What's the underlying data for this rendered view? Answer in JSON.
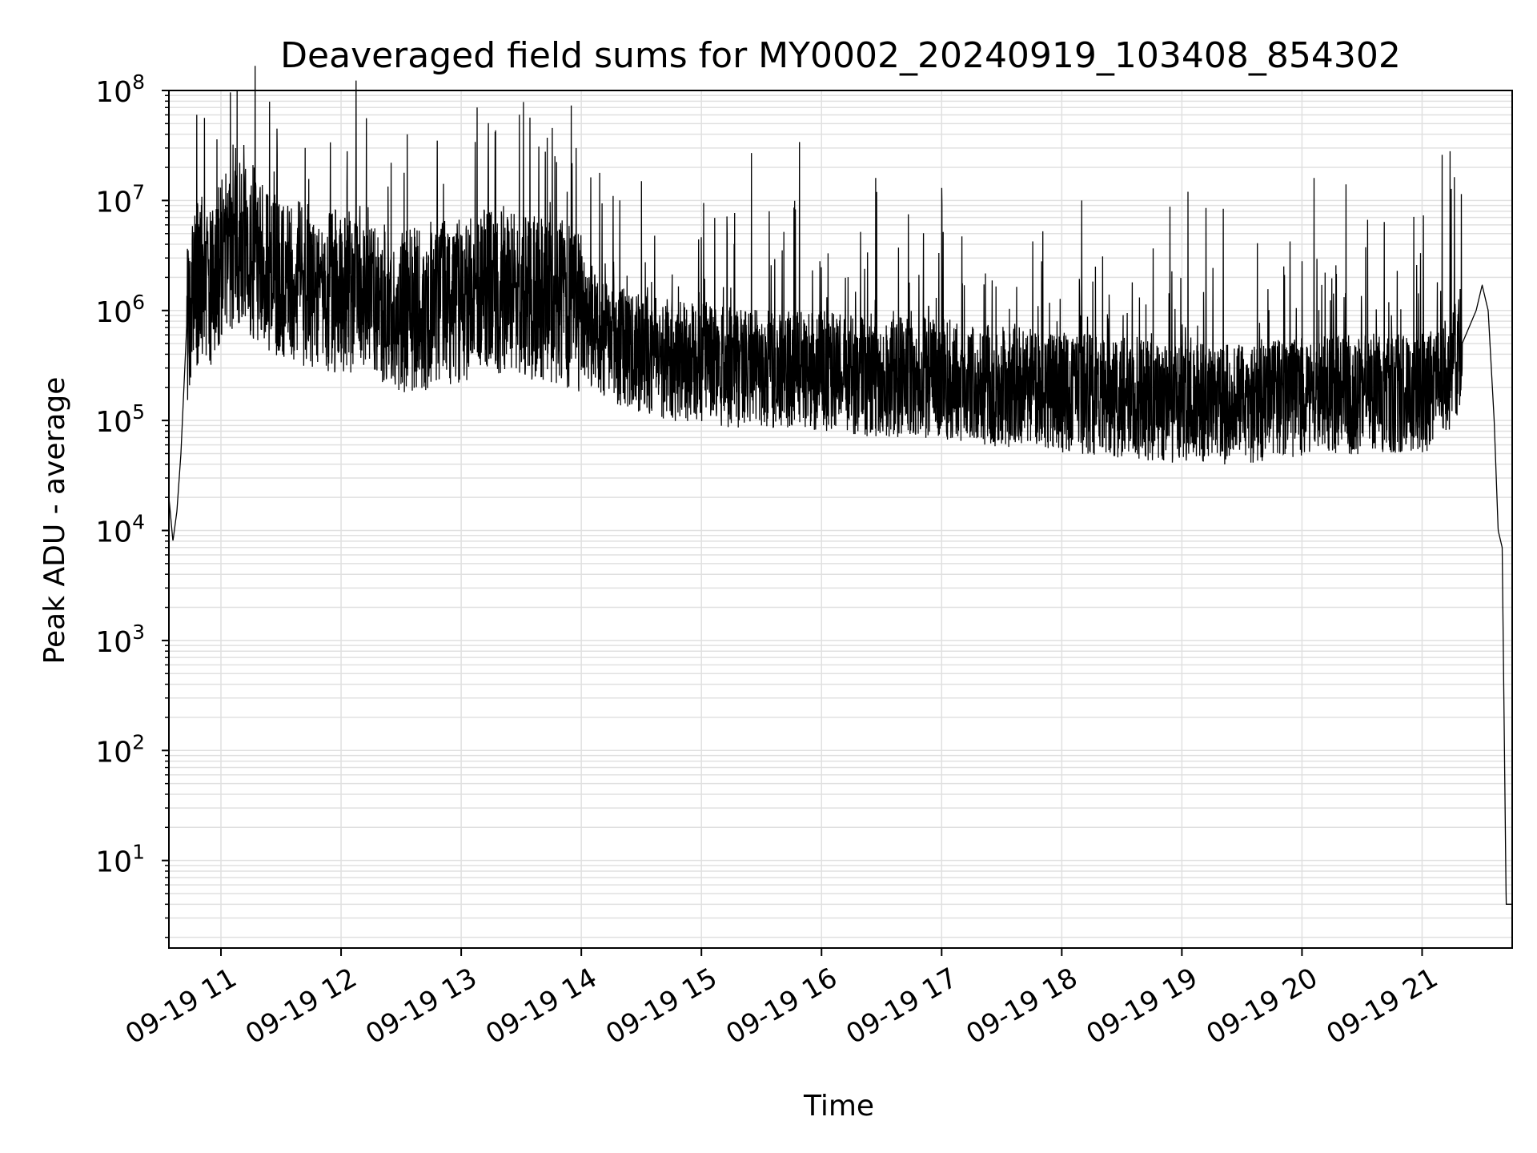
{
  "chart_data": {
    "type": "line",
    "title": "Deaveraged field sums for MY0002_20240919_103408_854302",
    "xlabel": "Time",
    "ylabel": "Peak ADU - average",
    "yscale": "log",
    "ylim": [
      1.6,
      100000000
    ],
    "xlim": [
      "2024-09-19 10:34",
      "2024-09-19 21:45"
    ],
    "grid": true,
    "line_color": "#000000",
    "grid_color": "#e0e0e0",
    "x_ticks": [
      {
        "value": "2024-09-19 11:00",
        "label": "09-19 11"
      },
      {
        "value": "2024-09-19 12:00",
        "label": "09-19 12"
      },
      {
        "value": "2024-09-19 13:00",
        "label": "09-19 13"
      },
      {
        "value": "2024-09-19 14:00",
        "label": "09-19 14"
      },
      {
        "value": "2024-09-19 15:00",
        "label": "09-19 15"
      },
      {
        "value": "2024-09-19 16:00",
        "label": "09-19 16"
      },
      {
        "value": "2024-09-19 17:00",
        "label": "09-19 17"
      },
      {
        "value": "2024-09-19 18:00",
        "label": "09-19 18"
      },
      {
        "value": "2024-09-19 19:00",
        "label": "09-19 19"
      },
      {
        "value": "2024-09-19 20:00",
        "label": "09-19 20"
      },
      {
        "value": "2024-09-19 21:00",
        "label": "09-19 21"
      }
    ],
    "y_ticks": [
      {
        "value": 10,
        "base": "10",
        "exp": "1"
      },
      {
        "value": 100,
        "base": "10",
        "exp": "2"
      },
      {
        "value": 1000,
        "base": "10",
        "exp": "3"
      },
      {
        "value": 10000,
        "base": "10",
        "exp": "4"
      },
      {
        "value": 100000,
        "base": "10",
        "exp": "5"
      },
      {
        "value": 1000000,
        "base": "10",
        "exp": "6"
      },
      {
        "value": 10000000,
        "base": "10",
        "exp": "7"
      },
      {
        "value": 100000000,
        "base": "10",
        "exp": "8"
      }
    ],
    "series": [
      {
        "x": [
          "2024-09-19 10:34",
          "2024-09-19 10:36",
          "2024-09-19 10:38",
          "2024-09-19 10:40",
          "2024-09-19 10:43",
          "2024-09-19 10:46",
          "2024-09-19 10:50",
          "2024-09-19 10:55",
          "2024-09-19 11:00",
          "2024-09-19 11:10",
          "2024-09-19 11:20",
          "2024-09-19 11:30",
          "2024-09-19 11:40",
          "2024-09-19 11:50",
          "2024-09-19 12:00",
          "2024-09-19 12:10",
          "2024-09-19 12:20",
          "2024-09-19 12:30",
          "2024-09-19 12:40",
          "2024-09-19 12:50",
          "2024-09-19 13:00",
          "2024-09-19 13:10",
          "2024-09-19 13:20",
          "2024-09-19 13:30",
          "2024-09-19 13:40",
          "2024-09-19 13:50",
          "2024-09-19 14:00",
          "2024-09-19 14:15",
          "2024-09-19 14:30",
          "2024-09-19 14:45",
          "2024-09-19 15:00",
          "2024-09-19 15:15",
          "2024-09-19 15:30",
          "2024-09-19 15:45",
          "2024-09-19 16:00",
          "2024-09-19 16:15",
          "2024-09-19 16:30",
          "2024-09-19 16:45",
          "2024-09-19 17:00",
          "2024-09-19 17:15",
          "2024-09-19 17:30",
          "2024-09-19 17:45",
          "2024-09-19 18:00",
          "2024-09-19 18:15",
          "2024-09-19 18:30",
          "2024-09-19 18:45",
          "2024-09-19 19:00",
          "2024-09-19 19:15",
          "2024-09-19 19:30",
          "2024-09-19 19:45",
          "2024-09-19 20:00",
          "2024-09-19 20:15",
          "2024-09-19 20:30",
          "2024-09-19 20:45",
          "2024-09-19 21:00",
          "2024-09-19 21:10",
          "2024-09-19 21:20",
          "2024-09-19 21:27",
          "2024-09-19 21:30",
          "2024-09-19 21:33",
          "2024-09-19 21:36",
          "2024-09-19 21:38",
          "2024-09-19 21:40",
          "2024-09-19 21:42",
          "2024-09-19 21:45"
        ],
        "y": [
          20000,
          8000,
          15000,
          50000,
          800000,
          1500000,
          2000000,
          1500000,
          3000000,
          4000000,
          2500000,
          2000000,
          1800000,
          1500000,
          1500000,
          1300000,
          1200000,
          1000000,
          1000000,
          1200000,
          1200000,
          1500000,
          1500000,
          1300000,
          1300000,
          1200000,
          900000,
          500000,
          400000,
          350000,
          350000,
          300000,
          300000,
          300000,
          280000,
          260000,
          250000,
          250000,
          240000,
          220000,
          200000,
          200000,
          180000,
          170000,
          160000,
          150000,
          140000,
          140000,
          140000,
          150000,
          170000,
          170000,
          170000,
          180000,
          180000,
          200000,
          500000,
          1000000,
          1700000,
          1000000,
          100000,
          10000,
          7000,
          4,
          4
        ],
        "spikes": [
          {
            "x": "2024-09-19 10:58",
            "y": 36000000
          },
          {
            "x": "2024-09-19 11:28",
            "y": 45000000
          },
          {
            "x": "2024-09-19 11:42",
            "y": 30000000
          },
          {
            "x": "2024-09-19 12:03",
            "y": 28000000
          },
          {
            "x": "2024-09-19 12:33",
            "y": 40000000
          },
          {
            "x": "2024-09-19 12:48",
            "y": 35000000
          },
          {
            "x": "2024-09-19 13:17",
            "y": 42000000
          },
          {
            "x": "2024-09-19 13:53",
            "y": 12000000
          },
          {
            "x": "2024-09-19 14:30",
            "y": 15000000
          },
          {
            "x": "2024-09-19 15:25",
            "y": 27000000
          },
          {
            "x": "2024-09-19 15:49",
            "y": 34000000
          },
          {
            "x": "2024-09-19 16:27",
            "y": 16000000
          },
          {
            "x": "2024-09-19 17:00",
            "y": 13000000
          },
          {
            "x": "2024-09-19 18:10",
            "y": 10000000
          },
          {
            "x": "2024-09-19 19:03",
            "y": 12000000
          },
          {
            "x": "2024-09-19 20:06",
            "y": 16000000
          },
          {
            "x": "2024-09-19 20:22",
            "y": 14000000
          },
          {
            "x": "2024-09-19 21:10",
            "y": 26000000
          },
          {
            "x": "2024-09-19 21:14",
            "y": 28000000
          }
        ]
      }
    ]
  }
}
